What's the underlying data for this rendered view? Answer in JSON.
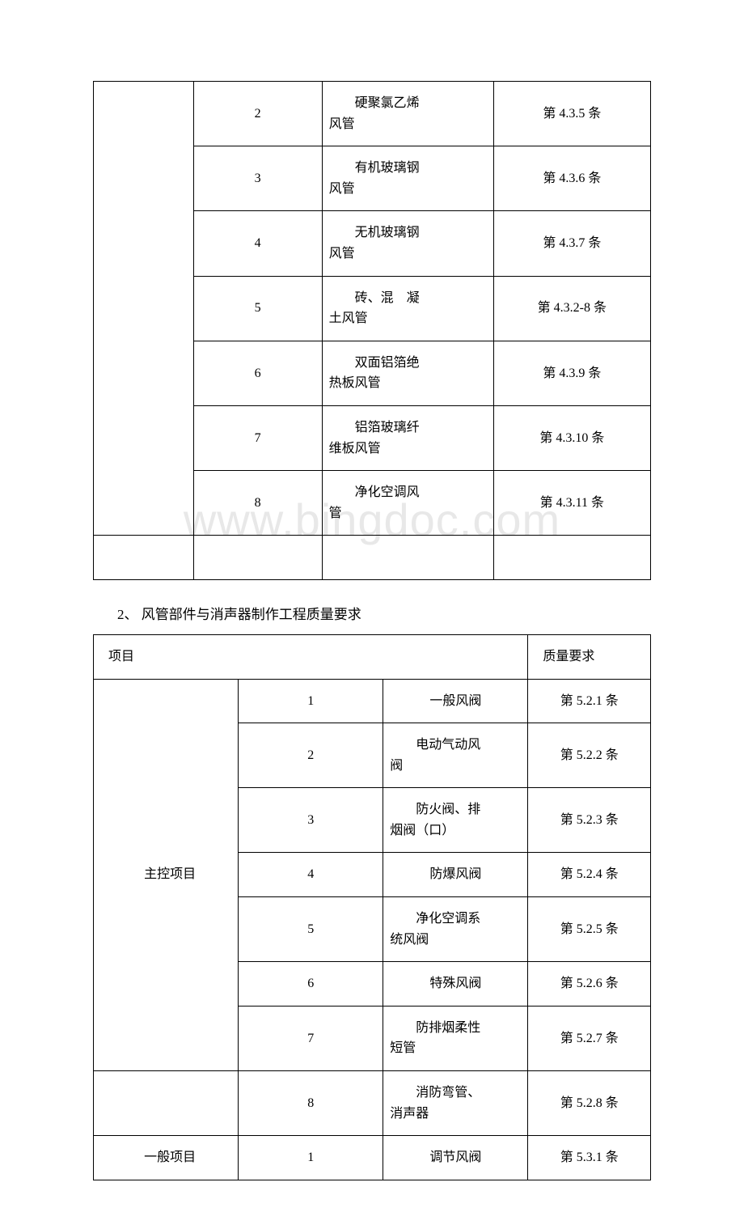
{
  "watermark": "www.bingdoc.com",
  "table1": {
    "rows": [
      {
        "num": "2",
        "desc_line1": "硬聚氯乙烯",
        "desc_line2": "风管",
        "req": "第 4.3.5 条"
      },
      {
        "num": "3",
        "desc_line1": "有机玻璃钢",
        "desc_line2": "风管",
        "req": "第 4.3.6 条"
      },
      {
        "num": "4",
        "desc_line1": "无机玻璃钢",
        "desc_line2": "风管",
        "req": "第 4.3.7 条"
      },
      {
        "num": "5",
        "desc_line1": "砖、混　凝",
        "desc_line2": "土风管",
        "req": "第 4.3.2-8 条"
      },
      {
        "num": "6",
        "desc_line1": "双面铝箔绝",
        "desc_line2": "热板风管",
        "req": "第 4.3.9 条"
      },
      {
        "num": "7",
        "desc_line1": "铝箔玻璃纤",
        "desc_line2": "维板风管",
        "req": "第 4.3.10 条"
      },
      {
        "num": "8",
        "desc_line1": "净化空调风",
        "desc_line2": "管",
        "req": "第 4.3.11 条"
      }
    ]
  },
  "heading": "2、 风管部件与消声器制作工程质量要求",
  "table2": {
    "header_left": "项目",
    "header_right": "质量要求",
    "section1_label": "主控项目",
    "section2_label": "一般项目",
    "rows1": [
      {
        "num": "1",
        "desc_single": "一般风阀",
        "req": "第 5.2.1 条"
      },
      {
        "num": "2",
        "desc_line1": "电动气动风",
        "desc_line2": "阀",
        "req": "第 5.2.2 条"
      },
      {
        "num": "3",
        "desc_line1": "防火阀、排",
        "desc_line2": "烟阀（口）",
        "req": "第 5.2.3 条"
      },
      {
        "num": "4",
        "desc_single": "防爆风阀",
        "req": "第 5.2.4 条"
      },
      {
        "num": "5",
        "desc_line1": "净化空调系",
        "desc_line2": "统风阀",
        "req": "第 5.2.5 条"
      },
      {
        "num": "6",
        "desc_single": "特殊风阀",
        "req": "第 5.2.6 条"
      },
      {
        "num": "7",
        "desc_line1": "防排烟柔性",
        "desc_line2": "短管",
        "req": "第 5.2.7 条"
      }
    ],
    "row_extra": {
      "num": "8",
      "desc_line1": "消防弯管、",
      "desc_line2": "消声器",
      "req": "第 5.2.8 条"
    },
    "rows2": [
      {
        "num": "1",
        "desc_single": "调节风阀",
        "req": "第 5.3.1 条"
      }
    ]
  }
}
